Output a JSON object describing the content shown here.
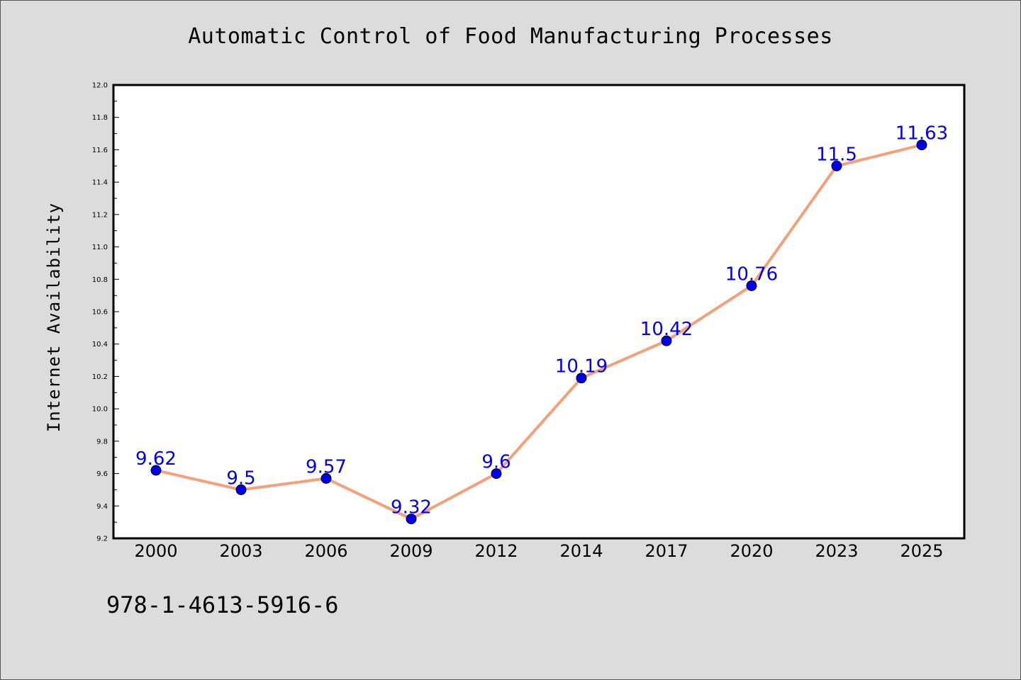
{
  "chart_data": {
    "type": "line",
    "title": "Automatic Control of Food Manufacturing Processes",
    "xlabel": "",
    "ylabel": "Internet Availability",
    "categories": [
      "2000",
      "2003",
      "2006",
      "2009",
      "2012",
      "2014",
      "2017",
      "2020",
      "2023",
      "2025"
    ],
    "series": [
      {
        "values": [
          9.62,
          9.5,
          9.57,
          9.32,
          9.6,
          10.19,
          10.42,
          10.76,
          11.5,
          11.63
        ],
        "labels": [
          "9.62",
          "9.5",
          "9.57",
          "9.32",
          "9.6",
          "10.19",
          "10.42",
          "10.76",
          "11.5",
          "11.63"
        ],
        "line_color": "#f4a07a",
        "marker_color": "#0000ee"
      }
    ],
    "ylim": [
      9.2,
      12.0
    ],
    "yticks": [
      "9.2",
      "9.4",
      "9.6",
      "9.8",
      "10.0",
      "10.2",
      "10.4",
      "10.6",
      "10.8",
      "11.0",
      "11.2",
      "11.4",
      "11.6",
      "11.8",
      "12.0"
    ],
    "grid": false,
    "legend": "none"
  },
  "footer": {
    "identifier": "978-1-4613-5916-6"
  },
  "colors": {
    "background": "#dcdcdc",
    "plot_background": "#ffffff",
    "line": "#f4a07a",
    "markers": "#0000ee",
    "data_labels": "#0000ee"
  }
}
